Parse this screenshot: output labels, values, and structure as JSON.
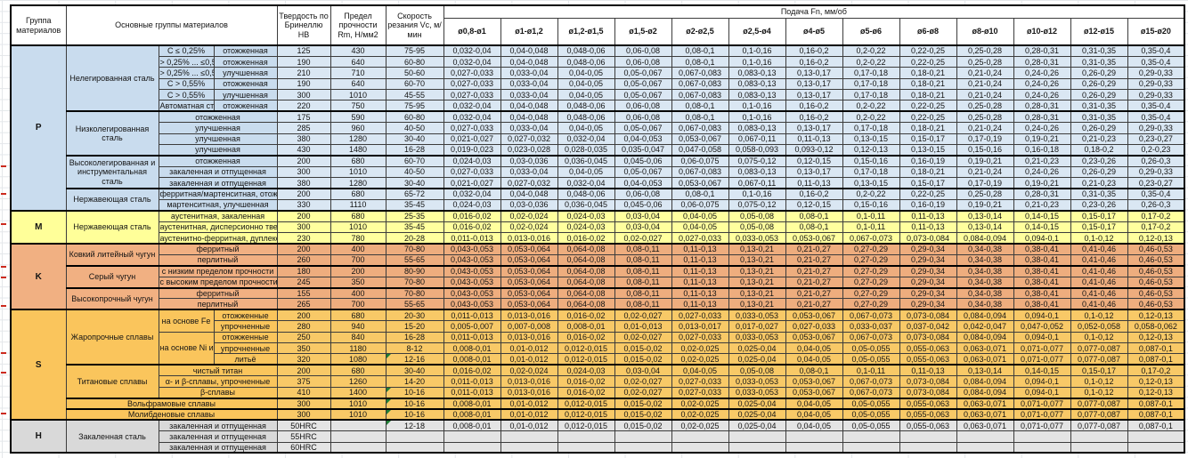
{
  "header": {
    "group": "Группа материалов",
    "materials": "Основные группы материалов",
    "hardness": "Твердость по Бринеллю HB",
    "strength": "Предел прочности Rm, Н/мм2",
    "speed": "Скорость резания Vc, м/мин",
    "feed": "Подача Fn, мм/об",
    "diameters": [
      "ø0,8-ø1",
      "ø1-ø1,2",
      "ø1,2-ø1,5",
      "ø1,5-ø2",
      "ø2-ø2,5",
      "ø2,5-ø4",
      "ø4-ø5",
      "ø5-ø6",
      "ø6-ø8",
      "ø8-ø10",
      "ø10-ø12",
      "ø12-ø15",
      "ø15-ø20"
    ]
  },
  "colors": {
    "p_group": "#dae7f3",
    "m_group": "#ffff9e",
    "k_group": "#eead7e",
    "s_group": "#f8c967",
    "h_group": "#e4e4e4",
    "error_flag": "#1e7e34",
    "row_marker": "#cc2a1e"
  },
  "patterns": {
    "A": [
      "0,032-0,04",
      "0,04-0,048",
      "0,048-0,06",
      "0,06-0,08",
      "0,08-0,1",
      "0,1-0,16",
      "0,16-0,2",
      "0,2-0,22",
      "0,22-0,25",
      "0,25-0,28",
      "0,28-0,31",
      "0,31-0,35",
      "0,35-0,4"
    ],
    "B": [
      "0,027-0,033",
      "0,033-0,04",
      "0,04-0,05",
      "0,05-0,067",
      "0,067-0,083",
      "0,083-0,13",
      "0,13-0,17",
      "0,17-0,18",
      "0,18-0,21",
      "0,21-0,24",
      "0,24-0,26",
      "0,26-0,29",
      "0,29-0,33"
    ],
    "C": [
      "0,021-0,027",
      "0,027-0,032",
      "0,032-0,04",
      "0,04-0,053",
      "0,053-0,067",
      "0,067-0,11",
      "0,11-0,13",
      "0,13-0,15",
      "0,15-0,17",
      "0,17-0,19",
      "0,19-0,21",
      "0,21-0,23",
      "0,23-0,27"
    ],
    "D": [
      "0,019-0,023",
      "0,023-0,028",
      "0,028-0,035",
      "0,035-0,047",
      "0,047-0,058",
      "0,058-0,093",
      "0,093-0,12",
      "0,12-0,13",
      "0,13-0,15",
      "0,15-0,16",
      "0,16-0,18",
      "0,18-0,2",
      "0,2-0,23"
    ],
    "E": [
      "0,024-0,03",
      "0,03-0,036",
      "0,036-0,045",
      "0,045-0,06",
      "0,06-0,075",
      "0,075-0,12",
      "0,12-0,15",
      "0,15-0,16",
      "0,16-0,19",
      "0,19-0,21",
      "0,21-0,23",
      "0,23-0,26",
      "0,26-0,3"
    ],
    "F": [
      "0,016-0,02",
      "0,02-0,024",
      "0,024-0,03",
      "0,03-0,04",
      "0,04-0,05",
      "0,05-0,08",
      "0,08-0,1",
      "0,1-0,11",
      "0,11-0,13",
      "0,13-0,14",
      "0,14-0,15",
      "0,15-0,17",
      "0,17-0,2"
    ],
    "G": [
      "0,011-0,013",
      "0,013-0,016",
      "0,016-0,02",
      "0,02-0,027",
      "0,027-0,033",
      "0,033-0,053",
      "0,053-0,067",
      "0,067-0,073",
      "0,073-0,084",
      "0,084-0,094",
      "0,094-0,1",
      "0,1-0,12",
      "0,12-0,13"
    ],
    "H": [
      "0,043-0,053",
      "0,053-0,064",
      "0,064-0,08",
      "0,08-0,11",
      "0,11-0,13",
      "0,13-0,21",
      "0,21-0,27",
      "0,27-0,29",
      "0,29-0,34",
      "0,34-0,38",
      "0,38-0,41",
      "0,41-0,46",
      "0,46-0,53"
    ],
    "I": [
      "0,005-0,007",
      "0,007-0,008",
      "0,008-0,01",
      "0,01-0,013",
      "0,013-0,017",
      "0,017-0,027",
      "0,027-0,033",
      "0,033-0,037",
      "0,037-0,042",
      "0,042-0,047",
      "0,047-0,052",
      "0,052-0,058",
      "0,058-0,062"
    ],
    "J": [
      "0,008-0,01",
      "0,01-0,012",
      "0,012-0,015",
      "0,015-0,02",
      "0,02-0,025",
      "0,025-0,04",
      "0,04-0,05",
      "0,05-0,055",
      "0,055-0,063",
      "0,063-0,071",
      "0,071-0,077",
      "0,077-0,087",
      "0,087-0,1"
    ]
  },
  "rows": [
    {
      "grp": "P",
      "g": "P",
      "gspan": 15,
      "mat": "Нелегированная сталь",
      "mspan": 6,
      "s1": "С ≤ 0,25%",
      "s2": "отожженная",
      "hb": "125",
      "rm": "430",
      "vc": "75-95",
      "p": "A",
      "tt": true
    },
    {
      "grp": "P",
      "s1": "> 0,25% ... ≤0,55%",
      "s2": "отожженная",
      "hb": "190",
      "rm": "640",
      "vc": "60-80",
      "p": "A"
    },
    {
      "grp": "P",
      "s1": "> 0,25% ... ≤0,55%",
      "s2": "улучшенная",
      "hb": "210",
      "rm": "710",
      "vc": "50-60",
      "p": "B"
    },
    {
      "grp": "P",
      "s1": "C > 0,55%",
      "s2": "отожженная",
      "hb": "190",
      "rm": "640",
      "vc": "60-70",
      "p": "B"
    },
    {
      "grp": "P",
      "s1": "C > 0,55%",
      "s2": "улучшенная",
      "hb": "300",
      "rm": "1010",
      "vc": "45-55",
      "p": "B"
    },
    {
      "grp": "P",
      "s1": "Автоматная сталь",
      "s2": "отожженная",
      "hb": "220",
      "rm": "750",
      "vc": "75-95",
      "p": "A"
    },
    {
      "grp": "P",
      "mat": "Низколегированная сталь",
      "mspan": 4,
      "s1": "отожженная",
      "s1col": 2,
      "hb": "175",
      "rm": "590",
      "vc": "60-80",
      "p": "A",
      "tt": true
    },
    {
      "grp": "P",
      "s1": "улучшенная",
      "s1col": 2,
      "hb": "285",
      "rm": "960",
      "vc": "40-50",
      "p": "B"
    },
    {
      "grp": "P",
      "s1": "улучшенная",
      "s1col": 2,
      "hb": "380",
      "rm": "1280",
      "vc": "30-40",
      "p": "C"
    },
    {
      "grp": "P",
      "s1": "улучшенная",
      "s1col": 2,
      "hb": "430",
      "rm": "1480",
      "vc": "16-28",
      "p": "D"
    },
    {
      "grp": "P",
      "mat": "Высоколегированная и инструментальная сталь",
      "mspan": 3,
      "s1": "отожженная",
      "s1col": 2,
      "hb": "200",
      "rm": "680",
      "vc": "60-70",
      "p": "E",
      "tt": true
    },
    {
      "grp": "P",
      "s1": "закаленная и отпущенная",
      "s1col": 2,
      "hb": "300",
      "rm": "1010",
      "vc": "40-50",
      "p": "B"
    },
    {
      "grp": "P",
      "s1": "закаленная и отпущенная",
      "s1col": 2,
      "hb": "380",
      "rm": "1280",
      "vc": "30-40",
      "p": "C"
    },
    {
      "grp": "P",
      "mat": "Нержавеющая сталь",
      "mspan": 2,
      "s1": "ферритная/мартенситная, отожженная",
      "s1col": 2,
      "hb": "200",
      "rm": "680",
      "vc": "65-72",
      "p": "A",
      "tt": true
    },
    {
      "grp": "P",
      "s1": "мартенситная, улучшенная",
      "s1col": 2,
      "hb": "330",
      "rm": "1110",
      "vc": "35-45",
      "p": "E"
    },
    {
      "grp": "M",
      "g": "M",
      "gspan": 3,
      "mat": "Нержавеющая сталь",
      "mspan": 3,
      "s1": "аустенитная, закаленная",
      "s1col": 2,
      "hb": "200",
      "rm": "680",
      "vc": "25-35",
      "p": "F",
      "tt": true
    },
    {
      "grp": "M",
      "s1": "аустенитная, дисперсионно твердеющая",
      "s1col": 2,
      "hb": "300",
      "rm": "1010",
      "vc": "35-45",
      "p": "F"
    },
    {
      "grp": "M",
      "s1": "аустенитно-ферритная, дуплексная",
      "s1col": 2,
      "hb": "230",
      "rm": "780",
      "vc": "20-28",
      "p": "G"
    },
    {
      "grp": "K",
      "g": "K",
      "gspan": 6,
      "mat": "Ковкий литейный чугун",
      "mspan": 2,
      "s1": "ферритный",
      "s1col": 2,
      "hb": "200",
      "rm": "400",
      "vc": "70-80",
      "p": "H",
      "tt": true
    },
    {
      "grp": "K",
      "s1": "перлитный",
      "s1col": 2,
      "hb": "260",
      "rm": "700",
      "vc": "55-65",
      "p": "H"
    },
    {
      "grp": "K",
      "mat": "Серый чугун",
      "mspan": 2,
      "s1": "с низким пределом прочности",
      "s1col": 2,
      "hb": "180",
      "rm": "200",
      "vc": "80-90",
      "p": "H",
      "tt": true
    },
    {
      "grp": "K",
      "s1": "с высоким пределом прочности",
      "s1col": 2,
      "hb": "245",
      "rm": "350",
      "vc": "70-80",
      "p": "H"
    },
    {
      "grp": "K",
      "mat": "Высокопрочный чугун",
      "mspan": 2,
      "s1": "ферритный",
      "s1col": 2,
      "hb": "155",
      "rm": "400",
      "vc": "70-80",
      "p": "H",
      "tt": true
    },
    {
      "grp": "K",
      "s1": "перлитный",
      "s1col": 2,
      "hb": "265",
      "rm": "700",
      "vc": "55-65",
      "p": "H"
    },
    {
      "grp": "S",
      "g": "S",
      "gspan": 10,
      "mat": "Жаропрочные сплавы",
      "mspan": 5,
      "s1": "на основе Fe",
      "s1span": 2,
      "s2": "отожженные",
      "hb": "200",
      "rm": "680",
      "vc": "20-30",
      "p": "G",
      "tt": true
    },
    {
      "grp": "S",
      "s2": "упрочненные",
      "hb": "280",
      "rm": "940",
      "vc": "15-20",
      "p": "I"
    },
    {
      "grp": "S",
      "s1": "на основе Ni и Co",
      "s1span": 3,
      "s2": "отожженные",
      "hb": "250",
      "rm": "840",
      "vc": "16-28",
      "p": "G"
    },
    {
      "grp": "S",
      "s2": "упрочненные",
      "hb": "350",
      "rm": "1180",
      "vc": "8-12",
      "p": "J"
    },
    {
      "grp": "S",
      "s2": "литьё",
      "hb": "320",
      "rm": "1080",
      "vc": "12-16",
      "p": "J",
      "mark": true
    },
    {
      "grp": "S",
      "mat": "Титановые сплавы",
      "mspan": 3,
      "s1": "чистый титан",
      "s1col": 2,
      "hb": "200",
      "rm": "680",
      "vc": "30-40",
      "p": "F",
      "tt": true
    },
    {
      "grp": "S",
      "s1": "α- и β-сплавы, упрочненные",
      "s1col": 2,
      "hb": "375",
      "rm": "1260",
      "vc": "14-20",
      "p": "G"
    },
    {
      "grp": "S",
      "s1": "β-сплавы",
      "s1col": 2,
      "hb": "410",
      "rm": "1400",
      "vc": "10-16",
      "p": "G",
      "mark": true
    },
    {
      "grp": "S",
      "mat": "Вольфрамовые сплавы",
      "mcol": 3,
      "hb": "300",
      "rm": "1010",
      "vc": "10-16",
      "p": "J",
      "mark": true,
      "tt": true
    },
    {
      "grp": "S",
      "mat": "Молибденовые сплавы",
      "mcol": 3,
      "hb": "300",
      "rm": "1010",
      "vc": "10-16",
      "p": "J",
      "mark": true,
      "tt": true
    },
    {
      "grp": "H",
      "g": "H",
      "gspan": 3,
      "mat": "Закаленная сталь",
      "mspan": 3,
      "s1": "закаленная и отпущенная",
      "s1col": 2,
      "hb": "50HRC",
      "rm": "",
      "vc": "12-18",
      "p": "J",
      "mark": true,
      "tt": true
    },
    {
      "grp": "H",
      "s1": "закаленная и отпущенная",
      "s1col": 2,
      "hb": "55HRC",
      "rm": "",
      "vc": "",
      "p": ""
    },
    {
      "grp": "H",
      "s1": "закаленная и отпущенная",
      "s1col": 2,
      "hb": "60HRC",
      "rm": "",
      "vc": "",
      "p": ""
    }
  ]
}
